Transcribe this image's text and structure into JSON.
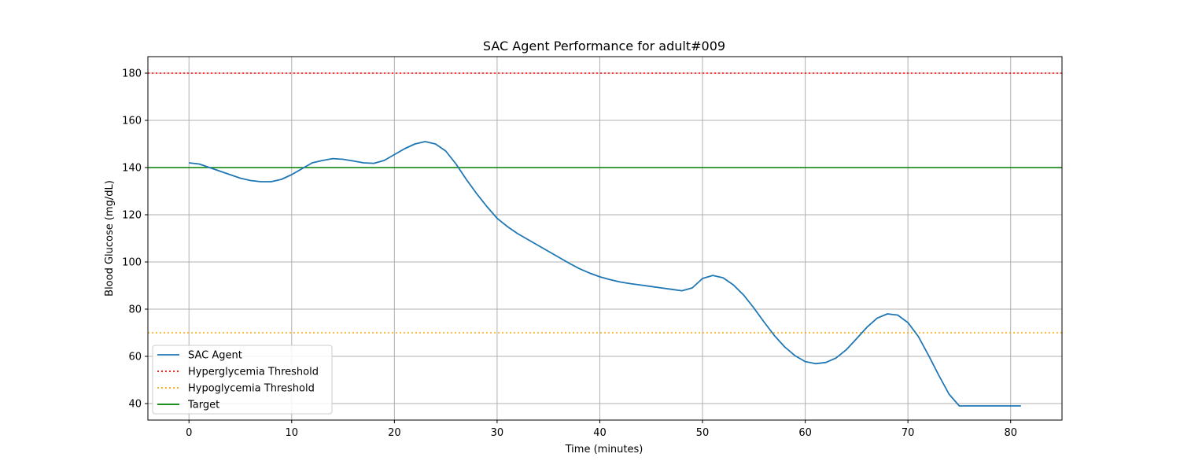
{
  "chart_data": {
    "type": "line",
    "title": "SAC Agent Performance for adult#009",
    "xlabel": "Time (minutes)",
    "ylabel": "Blood Glucose (mg/dL)",
    "xlim": [
      -4,
      85
    ],
    "ylim": [
      33,
      187
    ],
    "xticks": [
      0,
      10,
      20,
      30,
      40,
      50,
      60,
      70,
      80
    ],
    "yticks": [
      40,
      60,
      80,
      100,
      120,
      140,
      160,
      180
    ],
    "grid": true,
    "legend_position": "lower-left",
    "series": [
      {
        "name": "SAC Agent",
        "color": "#1f77b4",
        "style": "solid",
        "x": [
          0,
          1,
          2,
          3,
          4,
          5,
          6,
          7,
          8,
          9,
          10,
          11,
          12,
          13,
          14,
          15,
          16,
          17,
          18,
          19,
          20,
          21,
          22,
          23,
          24,
          25,
          26,
          27,
          28,
          29,
          30,
          31,
          32,
          33,
          34,
          35,
          36,
          37,
          38,
          39,
          40,
          41,
          42,
          43,
          44,
          45,
          46,
          47,
          48,
          49,
          50,
          51,
          52,
          53,
          54,
          55,
          56,
          57,
          58,
          59,
          60,
          61,
          62,
          63,
          64,
          65,
          66,
          67,
          68,
          69,
          70,
          71,
          72,
          73,
          74,
          75,
          76,
          77,
          78,
          79,
          80,
          81
        ],
        "y": [
          142,
          141.5,
          140,
          138.5,
          137,
          135.5,
          134.5,
          134,
          134,
          135,
          137,
          139.5,
          142,
          143,
          143.8,
          143.5,
          142.8,
          142,
          141.8,
          143,
          145.5,
          148,
          150,
          151,
          150,
          147,
          141.5,
          135,
          129,
          123.5,
          118.5,
          115,
          112,
          109.5,
          107,
          104.5,
          102,
          99.5,
          97.2,
          95.3,
          93.7,
          92.5,
          91.5,
          90.8,
          90.2,
          89.6,
          89,
          88.4,
          87.8,
          89,
          93,
          94.3,
          93.3,
          90.3,
          86,
          80.5,
          74.5,
          68.8,
          64,
          60.3,
          57.8,
          56.9,
          57.4,
          59.3,
          62.8,
          67.5,
          72.3,
          76.2,
          78,
          77.5,
          74.3,
          68.5,
          60.5,
          52,
          44,
          39,
          39,
          39,
          39,
          39,
          39,
          39
        ]
      },
      {
        "name": "Hyperglycemia Threshold",
        "color": "#ff0000",
        "style": "dotted",
        "y_const": 180
      },
      {
        "name": "Hypoglycemia Threshold",
        "color": "#ffa500",
        "style": "dotted",
        "y_const": 70
      },
      {
        "name": "Target",
        "color": "#008000",
        "style": "solid",
        "y_const": 140
      }
    ]
  }
}
